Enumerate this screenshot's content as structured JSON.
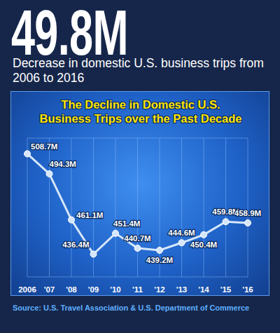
{
  "chart_data": {
    "type": "line",
    "title": "The Decline in Domestic U.S. Business Trips over the Past Decade",
    "annotations": [
      "49.8M",
      "Decrease in domestic U.S. business trips from 2006 to 2016",
      "Source: U.S. Travel Association & U.S. Department of Commerce"
    ],
    "categories": [
      "2006",
      "'07",
      "'08",
      "'09",
      "'10",
      "'11",
      "'12",
      "'13",
      "'14",
      "'15",
      "'16"
    ],
    "values": [
      508.7,
      494.3,
      461.1,
      436.4,
      451.4,
      440.7,
      439.2,
      444.6,
      450.4,
      459.8,
      458.9
    ],
    "value_labels": [
      "508.7M",
      "494.3M",
      "461.1M",
      "436.4M",
      "451.4M",
      "440.7M",
      "439.2M",
      "444.6M",
      "450.4M",
      "459.8M",
      "458.9M"
    ],
    "color": "#d6e6fa",
    "marker": "circle",
    "ylim": [
      420,
      520
    ],
    "yticks": [
      420,
      440,
      460,
      480,
      500,
      520
    ],
    "grid": true,
    "data_labels": true,
    "tick_labels": "x"
  }
}
